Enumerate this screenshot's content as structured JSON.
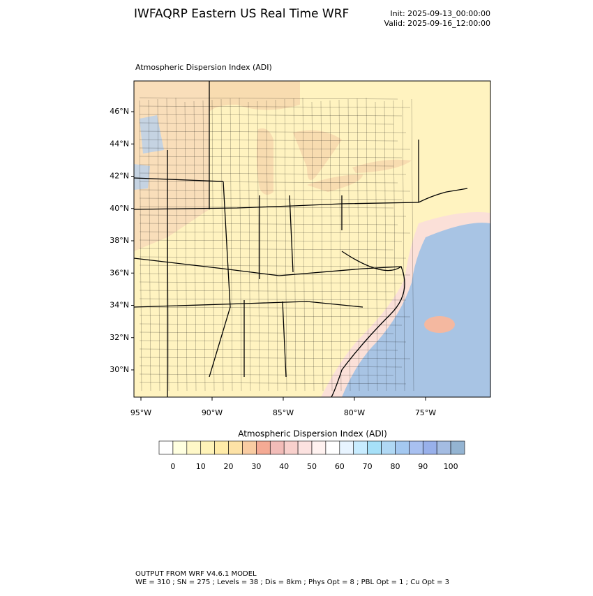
{
  "header": {
    "title": "IWFAQRP Eastern US Real Time WRF",
    "init": "Init: 2025-09-13_00:00:00",
    "valid": "Valid: 2025-09-16_12:00:00"
  },
  "map": {
    "subtitle": "Atmospheric Dispersion Index   (ADI)",
    "lat_labels": [
      "46°N",
      "44°N",
      "42°N",
      "40°N",
      "38°N",
      "36°N",
      "34°N",
      "32°N",
      "30°N"
    ],
    "lon_labels": [
      "95°W",
      "90°W",
      "85°W",
      "80°W",
      "75°W"
    ]
  },
  "colorbar": {
    "title": "Atmospheric Dispersion Index (ADI)",
    "colors": [
      "#ffffff",
      "#ffffe0",
      "#fff8c8",
      "#fff3b8",
      "#ffeba8",
      "#fde2a6",
      "#f9cca2",
      "#f4aa94",
      "#f2bcb8",
      "#f8d0cc",
      "#fce2e0",
      "#fff2f0",
      "#ffffff",
      "#e8f4ff",
      "#c8ecff",
      "#a6e0f8",
      "#b0d8f4",
      "#a4c8f0",
      "#a8c0f0",
      "#98b0ea",
      "#a4bce2",
      "#94b4d2"
    ],
    "ticks": [
      0,
      10,
      20,
      30,
      40,
      50,
      60,
      70,
      80,
      90,
      100
    ]
  },
  "footer": {
    "line1": "OUTPUT FROM WRF V4.6.1 MODEL",
    "line2": "WE = 310 ; SN = 275 ; Levels = 38 ; Dis = 8km ; Phys Opt = 8 ; PBL Opt = 1 ; Cu Opt = 3"
  }
}
